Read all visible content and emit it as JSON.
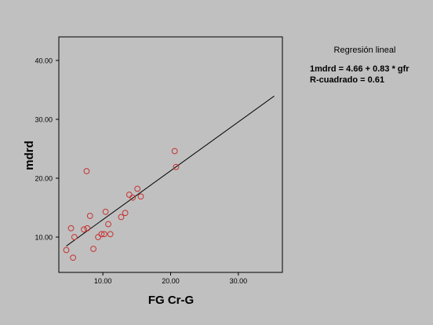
{
  "chart_data": {
    "type": "scatter",
    "xlabel": "FG Cr-G",
    "ylabel": "mdrd",
    "xticks": [
      "10.00",
      "20.00",
      "30.00"
    ],
    "xtick_values": [
      10,
      20,
      30
    ],
    "yticks": [
      "10.00",
      "20.00",
      "30.00",
      "40.00"
    ],
    "ytick_values": [
      10,
      20,
      30,
      40
    ],
    "xlim": [
      3.5,
      36.5
    ],
    "ylim": [
      4.0,
      44.0
    ],
    "grid": false,
    "legend_position": "top-right",
    "points": [
      {
        "x": 4.6,
        "y": 7.8
      },
      {
        "x": 5.3,
        "y": 11.5
      },
      {
        "x": 5.6,
        "y": 6.5
      },
      {
        "x": 5.8,
        "y": 10.0
      },
      {
        "x": 7.2,
        "y": 11.3
      },
      {
        "x": 7.6,
        "y": 21.2
      },
      {
        "x": 7.7,
        "y": 11.5
      },
      {
        "x": 8.1,
        "y": 13.6
      },
      {
        "x": 8.6,
        "y": 8.0
      },
      {
        "x": 9.3,
        "y": 10.0
      },
      {
        "x": 9.8,
        "y": 10.5
      },
      {
        "x": 10.2,
        "y": 10.5
      },
      {
        "x": 10.4,
        "y": 14.3
      },
      {
        "x": 10.8,
        "y": 12.2
      },
      {
        "x": 11.1,
        "y": 10.5
      },
      {
        "x": 12.7,
        "y": 13.4
      },
      {
        "x": 13.3,
        "y": 14.1
      },
      {
        "x": 13.9,
        "y": 17.2
      },
      {
        "x": 14.4,
        "y": 16.7
      },
      {
        "x": 15.1,
        "y": 18.2
      },
      {
        "x": 15.6,
        "y": 16.9
      },
      {
        "x": 20.6,
        "y": 24.6
      },
      {
        "x": 20.8,
        "y": 21.9
      }
    ],
    "fit": {
      "x_start": 4.6,
      "x_end": 35.3
    },
    "marker_color": "#c83232",
    "line_color": "#000000"
  },
  "legend": {
    "title": "Regresión lineal",
    "equation": "1mdrd = 4.66 + 0.83 * gfr",
    "r_squared": "R-cuadrado = 0.61"
  }
}
